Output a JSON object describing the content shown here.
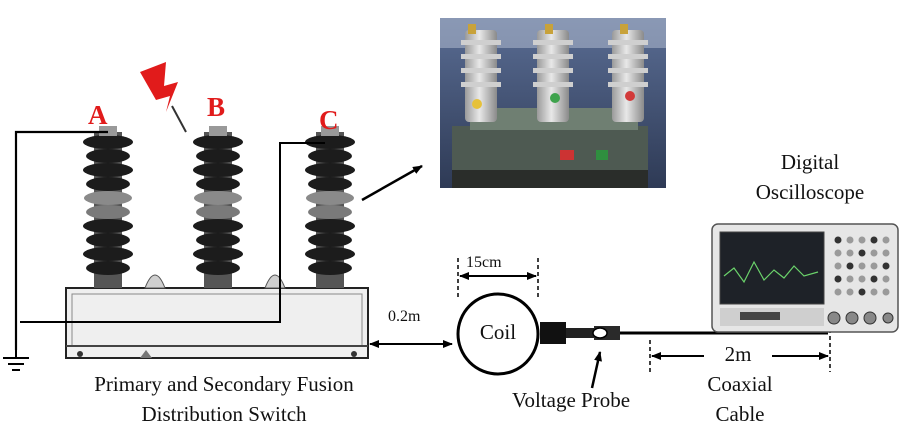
{
  "phases": {
    "a": "A",
    "b": "B",
    "c": "C"
  },
  "switch_caption": {
    "line1": "Primary and Secondary Fusion",
    "line2": "Distribution Switch"
  },
  "distance_label": "0.2m",
  "coil": {
    "label": "Coil",
    "diameter_label": "15cm"
  },
  "probe_label": "Voltage Probe",
  "cable": {
    "length_label": "2m",
    "line1": "Coaxial",
    "line2": "Cable"
  },
  "oscilloscope": {
    "line1": "Digital",
    "line2": "Oscilloscope"
  },
  "colors": {
    "phase_label": "#e11b1b",
    "lightning": "#e11b1b",
    "insulator": "#1c1c1c",
    "line": "#000000"
  },
  "icons": {
    "fault": "lightning-bolt-icon",
    "ground": "ground-icon"
  }
}
